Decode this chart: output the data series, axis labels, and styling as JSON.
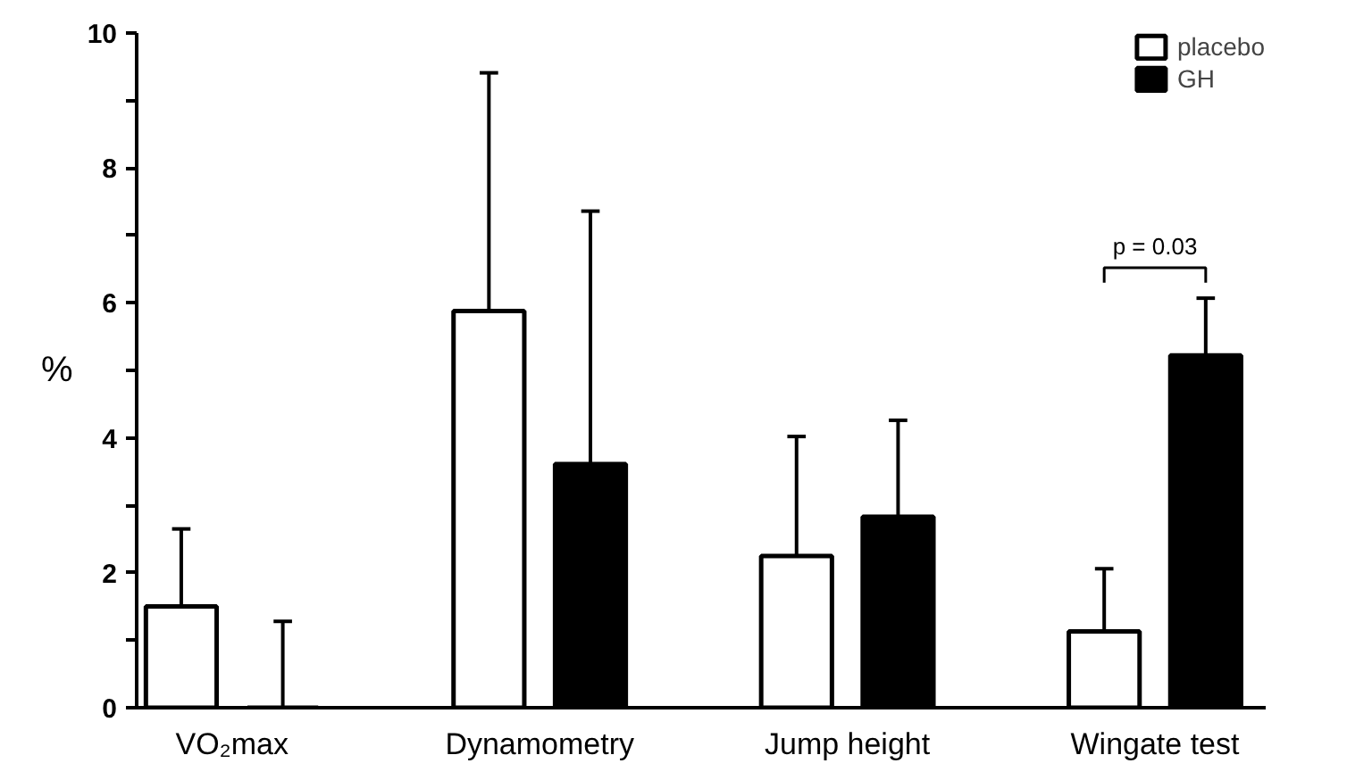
{
  "chart_data": {
    "type": "bar",
    "ylabel": "%",
    "categories": [
      "VO₂max",
      "Dynamometry",
      "Jump height",
      "Wingate test"
    ],
    "series": [
      {
        "name": "placebo",
        "color": "#ffffff",
        "values": [
          1.5,
          5.88,
          2.25,
          1.13
        ],
        "errors": [
          [
            1.5,
            2.65
          ],
          [
            5.88,
            9.41
          ],
          [
            2.25,
            4.02
          ],
          [
            1.13,
            2.06
          ]
        ]
      },
      {
        "name": "GH",
        "color": "#000000",
        "values": [
          0,
          3.61,
          2.83,
          5.22
        ],
        "errors": [
          [
            0,
            1.28
          ],
          [
            3.61,
            7.36
          ],
          [
            2.83,
            4.26
          ],
          [
            5.22,
            6.07
          ]
        ]
      }
    ],
    "ylim": [
      0,
      10
    ],
    "yticks": [
      0,
      {
        "value": 1,
        "label": null
      },
      2,
      {
        "value": 3,
        "label": null
      },
      4,
      {
        "value": 5,
        "label": null
      },
      6,
      {
        "value": 7,
        "label": null
      },
      8,
      {
        "value": 9,
        "label": null
      },
      10
    ],
    "annotations": [
      "p = 0.03"
    ],
    "grid": false,
    "legend": "top right"
  }
}
